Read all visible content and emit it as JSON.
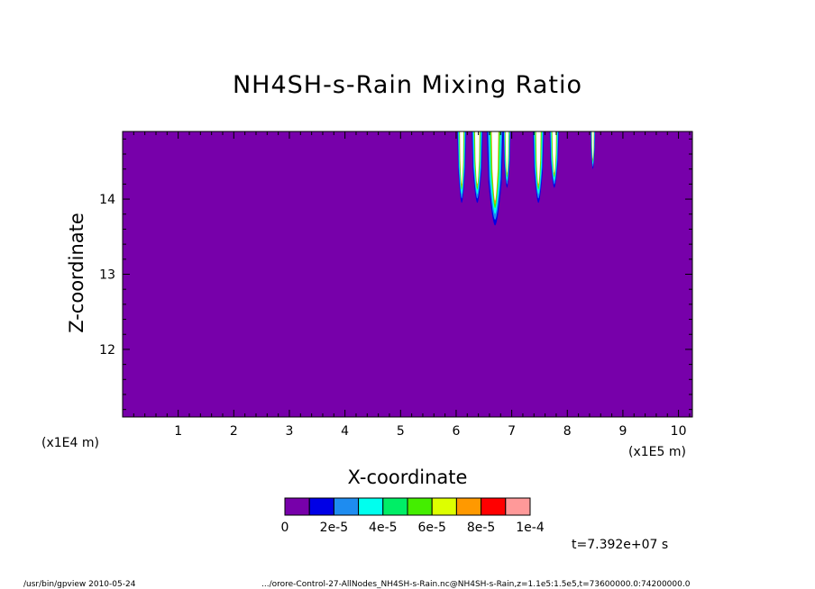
{
  "chart_data": {
    "type": "heatmap",
    "title": "NH4SH-s-Rain Mixing Ratio",
    "xlabel": "X-coordinate",
    "ylabel": "Z-coordinate",
    "x_scale_left": "(x1E4 m)",
    "x_scale_right": "(x1E5 m)",
    "xlim": [
      0,
      10.25
    ],
    "ylim": [
      11.1,
      14.9
    ],
    "x_ticks": [
      "1",
      "2",
      "3",
      "4",
      "5",
      "6",
      "7",
      "8",
      "9",
      "10"
    ],
    "x_tick_values": [
      1,
      2,
      3,
      4,
      5,
      6,
      7,
      8,
      9,
      10
    ],
    "y_ticks": [
      "12",
      "13",
      "14"
    ],
    "y_tick_values": [
      12,
      13,
      14
    ],
    "background_color": "#7700aa",
    "colorbar": {
      "colors": [
        "#7700aa",
        "#0000e6",
        "#1e8cf0",
        "#00ffee",
        "#00ee66",
        "#44ee00",
        "#ddff00",
        "#ff9900",
        "#ff0000",
        "#ff9999"
      ],
      "labels": [
        "0",
        "2e-5",
        "4e-5",
        "6e-5",
        "8e-5",
        "1e-4"
      ]
    },
    "features": [
      {
        "x": [
          6.02,
          6.18
        ],
        "z_bottom": 13.95
      },
      {
        "x": [
          6.28,
          6.48
        ],
        "z_bottom": 13.95
      },
      {
        "x": [
          6.55,
          6.85
        ],
        "z_bottom": 13.65
      },
      {
        "x": [
          6.85,
          6.98
        ],
        "z_bottom": 14.15
      },
      {
        "x": [
          7.38,
          7.58
        ],
        "z_bottom": 13.95
      },
      {
        "x": [
          7.68,
          7.85
        ],
        "z_bottom": 14.15
      },
      {
        "x": [
          8.42,
          8.5
        ],
        "z_bottom": 14.4
      }
    ],
    "time_label": "t=7.392e+07 s"
  },
  "footer": {
    "left": "/usr/bin/gpview  2010-05-24",
    "right": ".../orore-Control-27-AllNodes_NH4SH-s-Rain.nc@NH4SH-s-Rain,z=1.1e5:1.5e5,t=73600000.0:74200000.0"
  }
}
